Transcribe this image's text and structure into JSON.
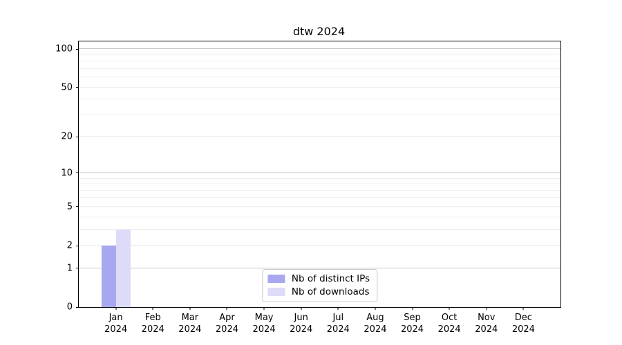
{
  "chart_data": {
    "type": "bar",
    "title": "dtw 2024",
    "categories": [
      "Jan",
      "Feb",
      "Mar",
      "Apr",
      "May",
      "Jun",
      "Jul",
      "Aug",
      "Sep",
      "Oct",
      "Nov",
      "Dec"
    ],
    "year_label": "2024",
    "series": [
      {
        "name": "Nb of distinct IPs",
        "color": "#a8a8f0",
        "values": [
          2,
          0,
          0,
          0,
          0,
          0,
          0,
          0,
          0,
          0,
          0,
          0
        ]
      },
      {
        "name": "Nb of downloads",
        "color": "#dcdcf8",
        "values": [
          3,
          0,
          0,
          0,
          0,
          0,
          0,
          0,
          0,
          0,
          0,
          0
        ]
      }
    ],
    "xlabel": "",
    "ylabel": "",
    "yscale": "log1p",
    "ylim": [
      0,
      115
    ],
    "yticks": [
      0,
      1,
      2,
      5,
      10,
      20,
      50,
      100
    ],
    "major_gridlines": [
      1,
      10,
      100
    ],
    "minor_gridlines": [
      2,
      3,
      4,
      5,
      6,
      7,
      8,
      9,
      20,
      30,
      40,
      50,
      60,
      70,
      80,
      90
    ],
    "grid": true,
    "legend_position": "lower center",
    "colors": {
      "axis": "#000000",
      "major_grid": "#c6c6c6",
      "minor_grid": "#ededed",
      "background": "#ffffff"
    }
  }
}
